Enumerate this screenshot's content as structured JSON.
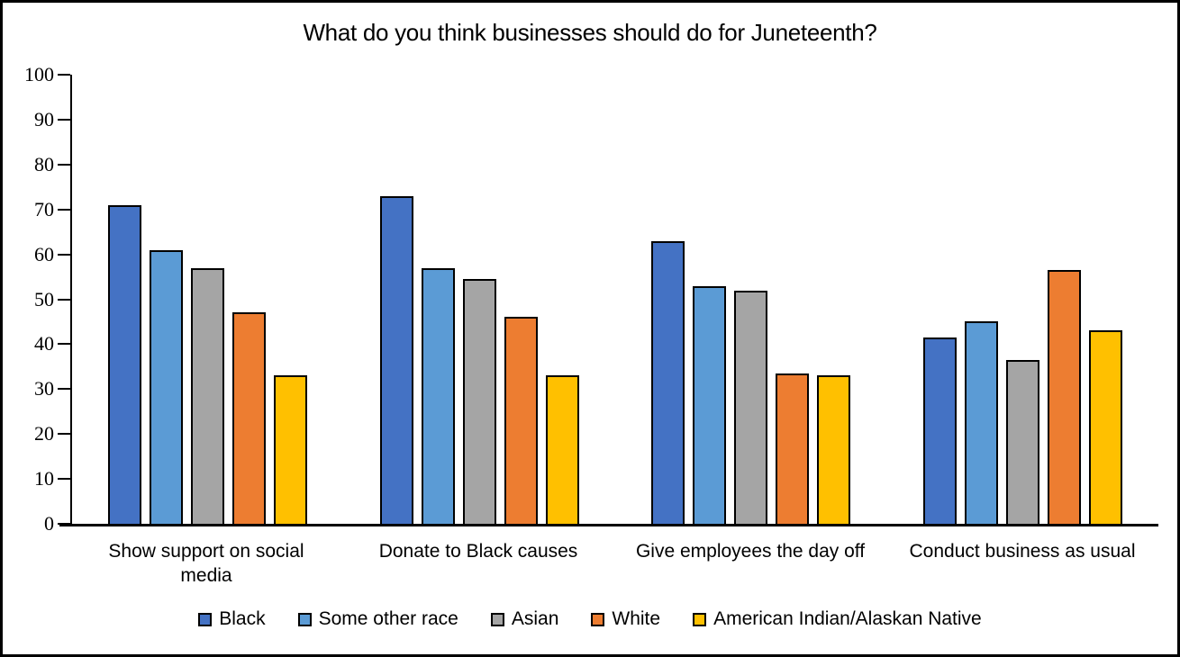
{
  "chart_data": {
    "type": "bar",
    "title": "What do you think businesses should do for Juneteenth?",
    "categories": [
      "Show support on social media",
      "Donate to Black causes",
      "Give employees the day off",
      "Conduct business as usual"
    ],
    "series": [
      {
        "name": "Black",
        "color": "#4472C4",
        "values": [
          71,
          73,
          63,
          41.5
        ]
      },
      {
        "name": "Some other race",
        "color": "#5B9BD5",
        "values": [
          61,
          57,
          53,
          45
        ]
      },
      {
        "name": "Asian",
        "color": "#A5A5A5",
        "values": [
          57,
          54.5,
          52,
          36.5
        ]
      },
      {
        "name": "White",
        "color": "#ED7D31",
        "values": [
          47,
          46,
          33.5,
          56.5
        ]
      },
      {
        "name": "American Indian/Alaskan Native",
        "color": "#FFC000",
        "values": [
          33,
          33,
          33,
          43
        ]
      }
    ],
    "xlabel": "",
    "ylabel": "",
    "ylim": [
      0,
      100
    ],
    "ytick_step": 10,
    "grid": false,
    "legend_position": "bottom",
    "bar_outline_color": "#000000",
    "axis_color": "#000000"
  }
}
